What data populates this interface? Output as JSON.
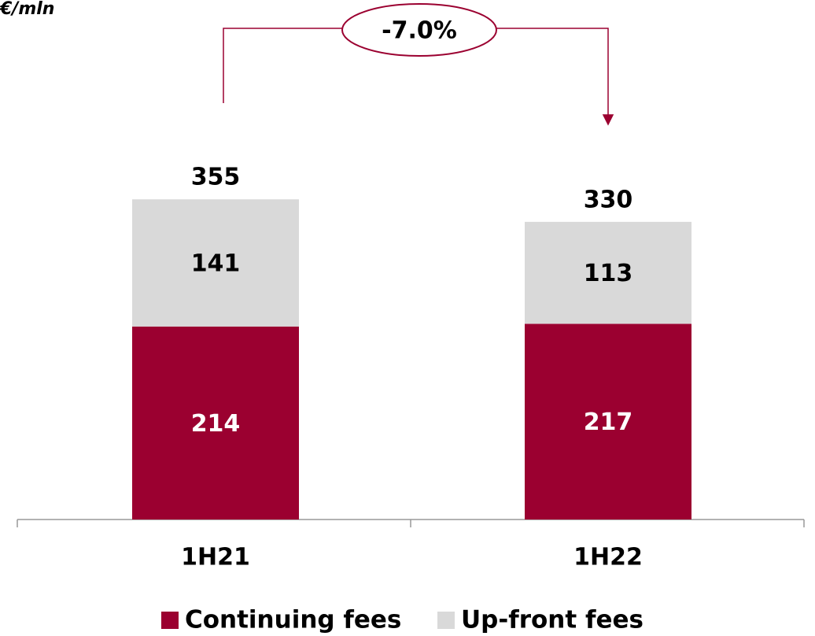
{
  "chart_data": {
    "type": "stacked_bar",
    "unit": "€/mln",
    "annotation": "-7.0%",
    "categories": [
      "1H21",
      "1H22"
    ],
    "series": [
      {
        "name": "Continuing fees",
        "color": "#9b0030",
        "values": [
          214,
          217
        ]
      },
      {
        "name": "Up-front fees",
        "color": "#d9d9d9",
        "values": [
          141,
          113
        ]
      }
    ],
    "totals": [
      355,
      330
    ],
    "ylim": [
      0,
      576
    ]
  }
}
